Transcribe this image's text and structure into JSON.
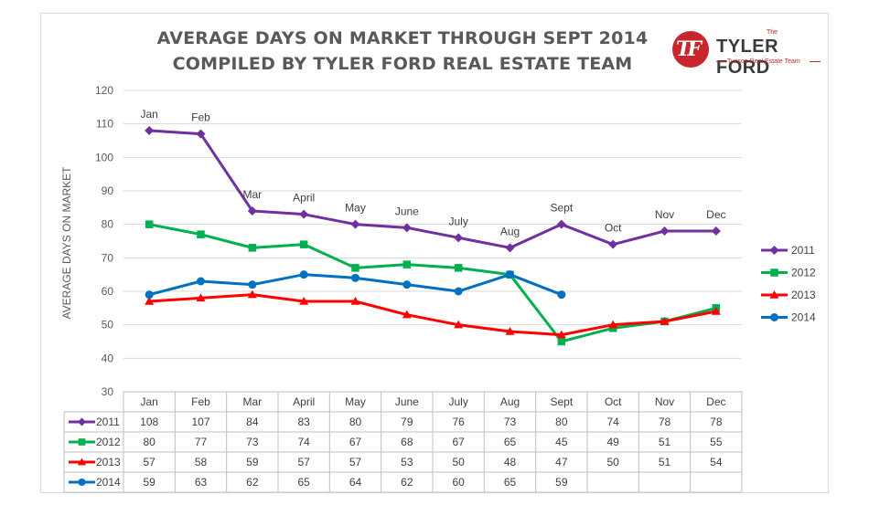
{
  "header": {
    "title_line1": "AVERAGE DAYS ON MARKET THROUGH SEPT 2014",
    "title_line2": "COMPILED BY TYLER FORD REAL ESTATE TEAM"
  },
  "logo": {
    "mark": "TF",
    "the": "The",
    "name": "TYLER FORD",
    "subtitle": "Tucson Real Estate Team",
    "color": "#c8252c"
  },
  "chart_data": {
    "type": "line",
    "ylabel": "AVERAGE DAYS ON MARKET",
    "ylim": [
      30,
      120
    ],
    "yticks": [
      30,
      40,
      50,
      60,
      70,
      80,
      90,
      100,
      110,
      120
    ],
    "grid": true,
    "legend_position": "right",
    "categories": [
      "Jan",
      "Feb",
      "Mar",
      "April",
      "May",
      "June",
      "July",
      "Aug",
      "Sept",
      "Oct",
      "Nov",
      "Dec"
    ],
    "point_labels": [
      "Jan",
      "Feb",
      "Mar",
      "April",
      "May",
      "June",
      "July",
      "Aug",
      "Sept",
      "Oct",
      "Nov",
      "Dec"
    ],
    "series": [
      {
        "name": "2011",
        "color": "#7030a0",
        "marker": "diamond",
        "values": [
          108,
          107,
          84,
          83,
          80,
          79,
          76,
          73,
          80,
          74,
          78,
          78
        ]
      },
      {
        "name": "2012",
        "color": "#00b050",
        "marker": "square",
        "values": [
          80,
          77,
          73,
          74,
          67,
          68,
          67,
          65,
          45,
          49,
          51,
          55
        ]
      },
      {
        "name": "2013",
        "color": "#ff0000",
        "marker": "triangle",
        "values": [
          57,
          58,
          59,
          57,
          57,
          53,
          50,
          48,
          47,
          50,
          51,
          54
        ]
      },
      {
        "name": "2014",
        "color": "#0070c0",
        "marker": "circle",
        "values": [
          59,
          63,
          62,
          65,
          64,
          62,
          60,
          65,
          59,
          null,
          null,
          null
        ]
      }
    ],
    "data_table": true
  }
}
